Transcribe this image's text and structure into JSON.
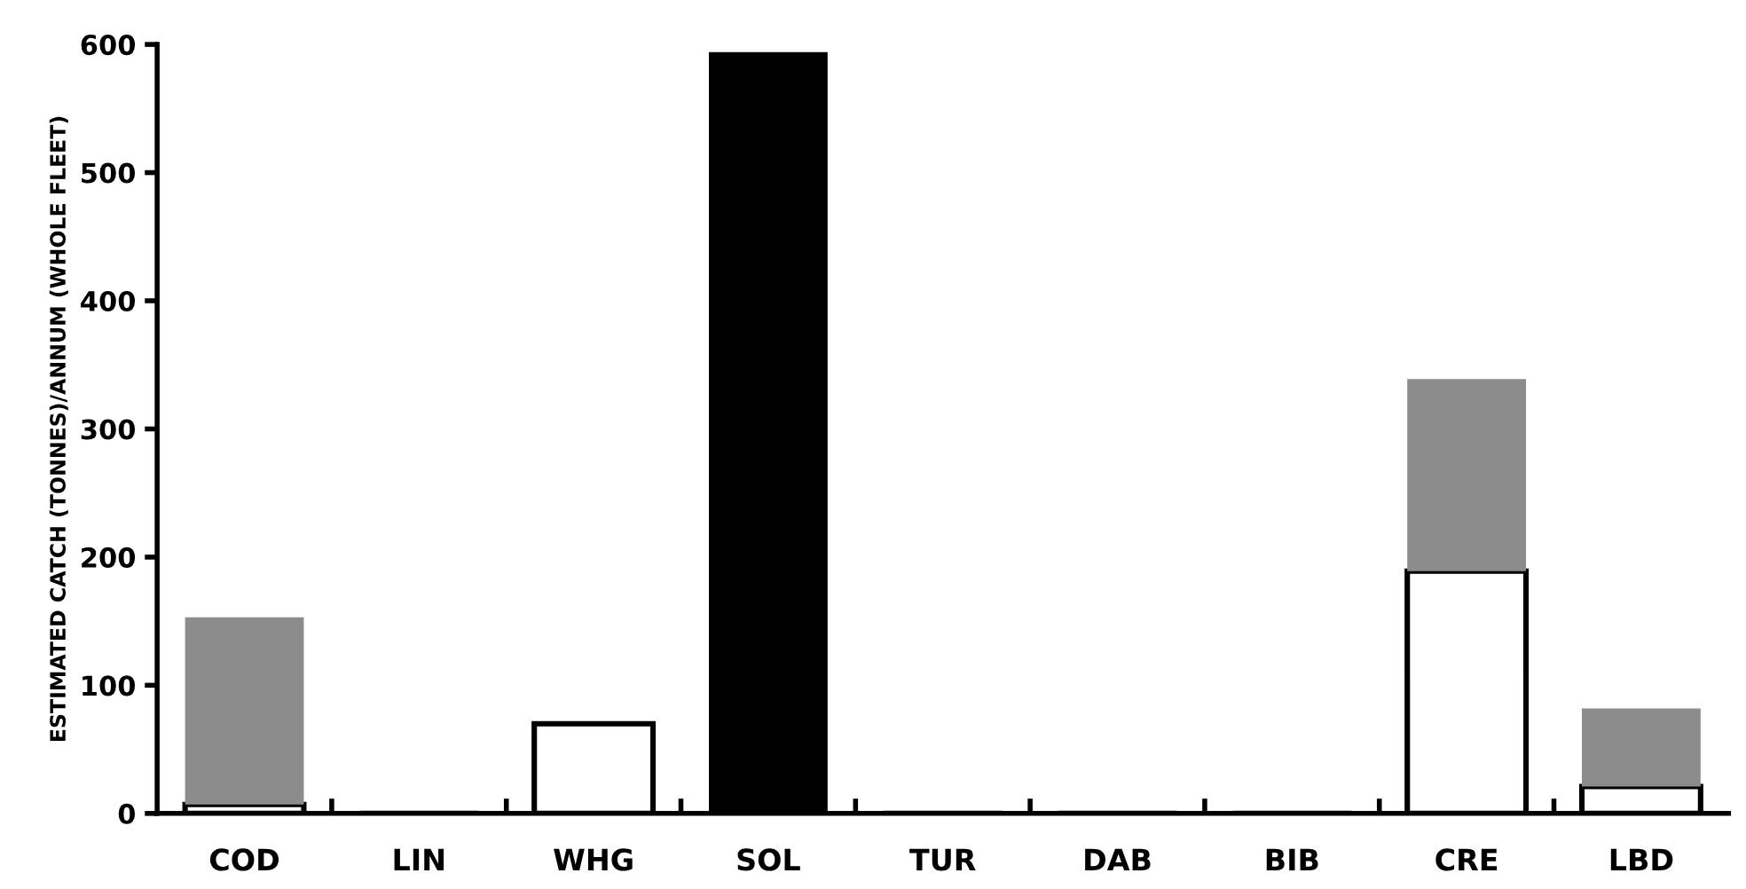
{
  "chart_data": {
    "type": "bar",
    "stacked": true,
    "ylabel": "ESTIMATED CATCH (TONNES)/ANNUM (WHOLE FLEET)",
    "categories": [
      "COD",
      "LIN",
      "WHG",
      "SOL",
      "TUR",
      "DAB",
      "BIB",
      "CRE",
      "LBD"
    ],
    "series": [
      {
        "color": "#ffffff",
        "values": [
          7,
          0,
          70,
          0,
          0,
          0,
          0,
          189,
          21
        ]
      },
      {
        "color": "#8c8c8c",
        "values": [
          146,
          0,
          0,
          0,
          0,
          0,
          0,
          150,
          61
        ]
      },
      {
        "color": "#000000",
        "values": [
          0,
          0,
          0,
          594,
          0,
          0,
          0,
          0,
          0
        ]
      }
    ],
    "ylim": [
      0,
      600
    ],
    "yticks": [
      0,
      100,
      200,
      300,
      400,
      500,
      600
    ],
    "grid": false
  }
}
